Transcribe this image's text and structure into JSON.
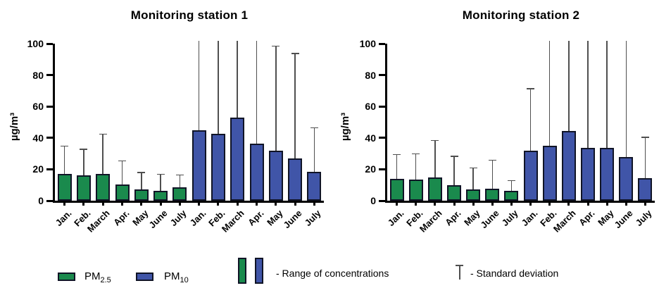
{
  "page": {
    "background": "#ffffff"
  },
  "colors": {
    "pm25": "#1a8a4d",
    "pm10": "#4055a8",
    "bar_border": "#101426",
    "error_bar": "#4f4f4f",
    "axis": "#000000",
    "text": "#000000"
  },
  "legend": {
    "pm25": {
      "base": "PM",
      "sub": "2.5"
    },
    "pm10": {
      "base": "PM",
      "sub": "10"
    },
    "range_label": "- Range of concentrations",
    "sd_label": "- Standard deviation"
  },
  "chart_data": [
    {
      "type": "bar",
      "title": "Monitoring station 1",
      "ylabel": "µg/m³",
      "xlabel": "",
      "ylim": [
        0,
        100
      ],
      "yticks": [
        0,
        20,
        40,
        60,
        80,
        100
      ],
      "grid": false,
      "legend_position": "bottom-shared",
      "categories": [
        "Jan.",
        "Feb.",
        "March",
        "Apr.",
        "May",
        "June",
        "July"
      ],
      "series": [
        {
          "name": "PM2.5",
          "color_key": "pm25",
          "values": [
            17,
            16,
            17,
            10.5,
            7,
            6.5,
            8.5
          ],
          "sd_top": [
            34.5,
            32.5,
            42,
            25,
            17.5,
            16.5,
            16
          ]
        },
        {
          "name": "PM10",
          "color_key": "pm10",
          "values": [
            45,
            42.5,
            53,
            36.5,
            32,
            27,
            18.5
          ],
          "sd_top": [
            102,
            102,
            102,
            102,
            98,
            93.5,
            46
          ]
        }
      ]
    },
    {
      "type": "bar",
      "title": "Monitoring station 2",
      "ylabel": "µg/m³",
      "xlabel": "",
      "ylim": [
        0,
        100
      ],
      "yticks": [
        0,
        20,
        40,
        60,
        80,
        100
      ],
      "grid": false,
      "legend_position": "bottom-shared",
      "categories": [
        "Jan.",
        "Feb.",
        "March",
        "Apr.",
        "May",
        "June",
        "July"
      ],
      "series": [
        {
          "name": "PM2.5",
          "color_key": "pm25",
          "values": [
            14,
            13.5,
            15,
            10,
            7,
            7.5,
            6.5
          ],
          "sd_top": [
            29,
            29.5,
            38,
            28,
            20.5,
            25.5,
            12.5
          ]
        },
        {
          "name": "PM10",
          "color_key": "pm10",
          "values": [
            32,
            35,
            44.5,
            33.5,
            33.5,
            28,
            14.5
          ],
          "sd_top": [
            71,
            102,
            102,
            102,
            102,
            102,
            40
          ]
        }
      ]
    }
  ]
}
